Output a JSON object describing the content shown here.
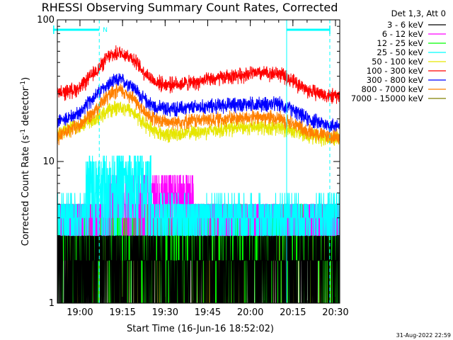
{
  "chart_data": {
    "type": "line",
    "title": "RHESSI Observing Summary Count Rates, Corrected",
    "xlabel": "Start Time (16-Jun-16 18:52:02)",
    "ylabel": "Corrected Count Rate (s",
    "ylabel_sup1": "-1",
    "ylabel_mid": " detector",
    "ylabel_sup2": "-1",
    "ylabel_end": ")",
    "yscale": "log",
    "ylim": [
      1,
      100
    ],
    "y_ticks": [
      {
        "value": 1,
        "label": "1"
      },
      {
        "value": 10,
        "label": "10"
      },
      {
        "value": 100,
        "label": "100"
      }
    ],
    "xlim_minutes": [
      1132.03,
      1231.5
    ],
    "x_ticks": [
      {
        "minute": 1140,
        "label": "19:00"
      },
      {
        "minute": 1155,
        "label": "19:15"
      },
      {
        "minute": 1170,
        "label": "19:30"
      },
      {
        "minute": 1185,
        "label": "19:45"
      },
      {
        "minute": 1200,
        "label": "20:00"
      },
      {
        "minute": 1215,
        "label": "20:15"
      },
      {
        "minute": 1230,
        "label": "20:30"
      }
    ],
    "legend_header": "Det 1,3, Att 0",
    "night_marker": "N",
    "date_stamp": "31-Aug-2022 22:59",
    "series": [
      {
        "name": "3 - 6 keV",
        "color": "#000000",
        "kind": "noise",
        "levels": [
          1,
          2,
          3
        ]
      },
      {
        "name": "6 - 12 keV",
        "color": "#ff00ff",
        "kind": "noise",
        "levels": [
          3,
          4,
          5,
          6,
          7,
          8
        ]
      },
      {
        "name": "12 - 25 keV",
        "color": "#00ff00",
        "kind": "noise",
        "levels": [
          1,
          2,
          3,
          4,
          5
        ]
      },
      {
        "name": "25 - 50 keV",
        "color": "#00ffff",
        "kind": "noise",
        "levels": [
          3,
          4,
          5,
          6,
          7,
          8,
          9,
          10,
          11
        ]
      },
      {
        "name": "50 - 100 keV",
        "color": "#e6e600",
        "kind": "profile",
        "values": [
          [
            1132,
            16
          ],
          [
            1140,
            18
          ],
          [
            1146,
            20
          ],
          [
            1150,
            23
          ],
          [
            1154,
            24.5
          ],
          [
            1158,
            23
          ],
          [
            1162,
            19
          ],
          [
            1166,
            16.5
          ],
          [
            1170,
            15.5
          ],
          [
            1180,
            16
          ],
          [
            1190,
            17
          ],
          [
            1200,
            17.5
          ],
          [
            1210,
            17.5
          ],
          [
            1215,
            16.5
          ],
          [
            1220,
            15.5
          ],
          [
            1228,
            14.5
          ]
        ]
      },
      {
        "name": "100 - 300 keV",
        "color": "#ff0000",
        "kind": "profile",
        "values": [
          [
            1132,
            30
          ],
          [
            1140,
            33
          ],
          [
            1146,
            44
          ],
          [
            1150,
            55
          ],
          [
            1154,
            59
          ],
          [
            1158,
            55
          ],
          [
            1162,
            44
          ],
          [
            1166,
            37
          ],
          [
            1170,
            35
          ],
          [
            1180,
            36
          ],
          [
            1190,
            39
          ],
          [
            1200,
            42
          ],
          [
            1210,
            42
          ],
          [
            1215,
            37
          ],
          [
            1220,
            32
          ],
          [
            1228,
            29
          ]
        ]
      },
      {
        "name": "300 - 800 keV",
        "color": "#0000ff",
        "kind": "profile",
        "values": [
          [
            1132,
            19
          ],
          [
            1140,
            22
          ],
          [
            1146,
            30
          ],
          [
            1150,
            35
          ],
          [
            1154,
            38
          ],
          [
            1158,
            35
          ],
          [
            1162,
            28
          ],
          [
            1166,
            24.5
          ],
          [
            1170,
            23.5
          ],
          [
            1180,
            24
          ],
          [
            1190,
            25
          ],
          [
            1200,
            25.5
          ],
          [
            1210,
            25.5
          ],
          [
            1215,
            23
          ],
          [
            1220,
            20
          ],
          [
            1228,
            18
          ]
        ]
      },
      {
        "name": "800 - 7000 keV",
        "color": "#ff8000",
        "kind": "profile",
        "values": [
          [
            1132,
            15
          ],
          [
            1140,
            18
          ],
          [
            1146,
            24
          ],
          [
            1150,
            29
          ],
          [
            1154,
            32
          ],
          [
            1158,
            29
          ],
          [
            1162,
            23
          ],
          [
            1166,
            20
          ],
          [
            1170,
            19
          ],
          [
            1180,
            19.5
          ],
          [
            1190,
            20
          ],
          [
            1200,
            20.5
          ],
          [
            1210,
            20.5
          ],
          [
            1215,
            18.5
          ],
          [
            1220,
            16.5
          ],
          [
            1228,
            15
          ]
        ]
      },
      {
        "name": "7000 - 15000 keV",
        "color": "#808000",
        "kind": "noise",
        "levels": [
          1,
          2,
          3,
          4
        ]
      }
    ],
    "night_interval_minutes": [
      1130.5,
      1146.8
    ],
    "saa_interval_minutes": [
      1212.8,
      1228.0
    ],
    "attenuator_markers_minutes": [
      1146.8,
      1212.8,
      1228.0
    ]
  }
}
